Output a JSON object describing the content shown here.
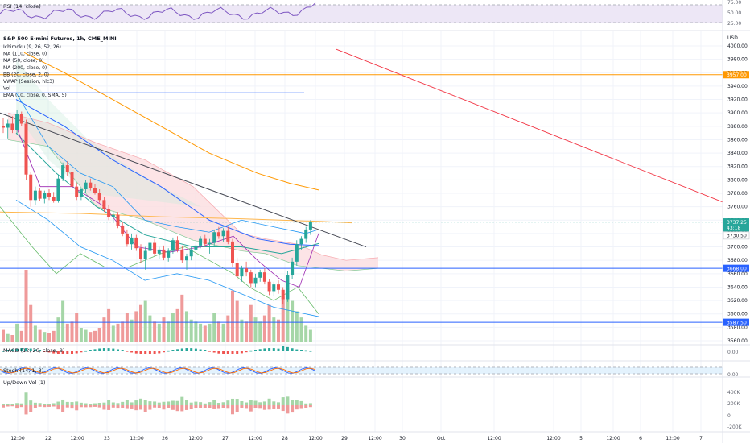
{
  "colors": {
    "up": "#26a69a",
    "down": "#ef5350",
    "vol_up": "#a5d6a7",
    "vol_down": "#ef9a9a",
    "grid": "#f0f3fa",
    "axis_text": "#131722",
    "label_muted": "#5d606b",
    "rsi_line": "#7e57c2",
    "rsi_band": "#ede7f6",
    "ma110": "#2962ff",
    "ma50": "#26a69a",
    "ma200": "#ff9800",
    "bb": "#2196f3",
    "vwap": "#ffb74d",
    "kumo_bear": "#fbdde0",
    "kumo_bull": "#c8ead9",
    "trend_dark": "#434651",
    "trend_red": "#f23645",
    "hline_blue": "#2962ff",
    "hline_orange": "#ff9800",
    "macd_up": "#26a69a",
    "macd_down": "#ef5350",
    "stoch_k": "#2962ff",
    "stoch_d": "#ff6d00"
  },
  "price_panel": {
    "currency": "USD",
    "title": "S&P 500 E-mini Futures, 1h, CME_MINI",
    "indicators": [
      "Ichimoku (9, 26, 52, 26)",
      "MA (110, close, 0)",
      "MA (50, close, 0)",
      "MA (200, close, 0)",
      "BB (20, close, 2, 0)",
      "VWAP (Session, hlc3)",
      "Vol",
      "EMA (10, close, 0, SMA, 5)"
    ],
    "axis_labels": [
      "4000.00",
      "3980.00",
      "3960.00",
      "3940.00",
      "3920.00",
      "3900.00",
      "3880.00",
      "3860.00",
      "3840.00",
      "3820.00",
      "3800.00",
      "3780.00",
      "3760.00",
      "3740.00",
      "3720.00",
      "3700.00",
      "3680.00",
      "3660.00",
      "3640.00",
      "3620.00",
      "3600.00",
      "3580.00",
      "3560.00"
    ],
    "price_tags": [
      {
        "label": "3957.00",
        "color": "#ff9800",
        "text_color": "#ffffff"
      },
      {
        "label": "3737.25",
        "color": "#26a69a",
        "text_color": "#ffffff"
      },
      {
        "label": "43:18",
        "color": "#26a69a",
        "text_color": "#ffffff"
      },
      {
        "label": "3730.50",
        "color": "#ffffff",
        "text_color": "#131722"
      },
      {
        "label": "3668.00",
        "color": "#2962ff",
        "text_color": "#ffffff"
      },
      {
        "label": "3587.50",
        "color": "#2962ff",
        "text_color": "#ffffff"
      }
    ]
  },
  "rsi_panel": {
    "title": "RSI (14, close)",
    "axis_labels": [
      "75.00",
      "50.00",
      "25.00"
    ]
  },
  "macd_panel": {
    "title": "MACD (12, 26, close, 9)",
    "axis_labels": [
      "0.00"
    ]
  },
  "stoch_panel": {
    "title": "Stoch (14, 1, 3)",
    "axis_labels": [
      "0.00"
    ]
  },
  "updown_panel": {
    "title": "Up/Down Vol (1)",
    "axis_labels": [
      "400K",
      "200K",
      "0",
      "-200K",
      "-400K"
    ]
  },
  "time_axis": [
    "12:00",
    "22",
    "12:00",
    "23",
    "12:00",
    "26",
    "12:00",
    "27",
    "12:00",
    "28",
    "12:00",
    "29",
    "12:00",
    "30",
    "Oct",
    "12:00",
    "12:00",
    "5",
    "12:00",
    "6",
    "12:00",
    "7"
  ],
  "chart_data": {
    "type": "candlestick",
    "symbol": "S&P 500 E-mini Futures",
    "interval": "1h",
    "y_axis_range": [
      3560,
      4000
    ],
    "candles": [
      {
        "o": 3880,
        "h": 3892,
        "l": 3870,
        "c": 3878
      },
      {
        "o": 3878,
        "h": 3890,
        "l": 3862,
        "c": 3884
      },
      {
        "o": 3884,
        "h": 3895,
        "l": 3870,
        "c": 3874
      },
      {
        "o": 3874,
        "h": 3905,
        "l": 3868,
        "c": 3898
      },
      {
        "o": 3898,
        "h": 3902,
        "l": 3880,
        "c": 3884
      },
      {
        "o": 3884,
        "h": 3890,
        "l": 3800,
        "c": 3808
      },
      {
        "o": 3808,
        "h": 3812,
        "l": 3760,
        "c": 3770
      },
      {
        "o": 3770,
        "h": 3790,
        "l": 3762,
        "c": 3784
      },
      {
        "o": 3784,
        "h": 3788,
        "l": 3768,
        "c": 3772
      },
      {
        "o": 3772,
        "h": 3784,
        "l": 3765,
        "c": 3780
      },
      {
        "o": 3780,
        "h": 3786,
        "l": 3770,
        "c": 3774
      },
      {
        "o": 3774,
        "h": 3782,
        "l": 3766,
        "c": 3768
      },
      {
        "o": 3768,
        "h": 3808,
        "l": 3766,
        "c": 3802
      },
      {
        "o": 3802,
        "h": 3826,
        "l": 3798,
        "c": 3822
      },
      {
        "o": 3822,
        "h": 3828,
        "l": 3806,
        "c": 3812
      },
      {
        "o": 3812,
        "h": 3818,
        "l": 3786,
        "c": 3790
      },
      {
        "o": 3790,
        "h": 3796,
        "l": 3770,
        "c": 3774
      },
      {
        "o": 3774,
        "h": 3788,
        "l": 3770,
        "c": 3786
      },
      {
        "o": 3786,
        "h": 3800,
        "l": 3780,
        "c": 3796
      },
      {
        "o": 3796,
        "h": 3802,
        "l": 3784,
        "c": 3788
      },
      {
        "o": 3788,
        "h": 3794,
        "l": 3778,
        "c": 3780
      },
      {
        "o": 3780,
        "h": 3786,
        "l": 3766,
        "c": 3770
      },
      {
        "o": 3770,
        "h": 3774,
        "l": 3752,
        "c": 3756
      },
      {
        "o": 3756,
        "h": 3762,
        "l": 3740,
        "c": 3744
      },
      {
        "o": 3744,
        "h": 3752,
        "l": 3736,
        "c": 3748
      },
      {
        "o": 3748,
        "h": 3752,
        "l": 3728,
        "c": 3732
      },
      {
        "o": 3732,
        "h": 3738,
        "l": 3716,
        "c": 3720
      },
      {
        "o": 3720,
        "h": 3726,
        "l": 3700,
        "c": 3704
      },
      {
        "o": 3704,
        "h": 3720,
        "l": 3696,
        "c": 3714
      },
      {
        "o": 3714,
        "h": 3718,
        "l": 3694,
        "c": 3698
      },
      {
        "o": 3698,
        "h": 3704,
        "l": 3676,
        "c": 3682
      },
      {
        "o": 3682,
        "h": 3700,
        "l": 3666,
        "c": 3694
      },
      {
        "o": 3694,
        "h": 3710,
        "l": 3690,
        "c": 3706
      },
      {
        "o": 3706,
        "h": 3712,
        "l": 3686,
        "c": 3690
      },
      {
        "o": 3690,
        "h": 3700,
        "l": 3682,
        "c": 3696
      },
      {
        "o": 3696,
        "h": 3702,
        "l": 3680,
        "c": 3684
      },
      {
        "o": 3684,
        "h": 3698,
        "l": 3678,
        "c": 3694
      },
      {
        "o": 3694,
        "h": 3714,
        "l": 3690,
        "c": 3710
      },
      {
        "o": 3710,
        "h": 3716,
        "l": 3692,
        "c": 3696
      },
      {
        "o": 3696,
        "h": 3702,
        "l": 3676,
        "c": 3680
      },
      {
        "o": 3680,
        "h": 3690,
        "l": 3666,
        "c": 3686
      },
      {
        "o": 3686,
        "h": 3700,
        "l": 3680,
        "c": 3696
      },
      {
        "o": 3696,
        "h": 3708,
        "l": 3690,
        "c": 3702
      },
      {
        "o": 3702,
        "h": 3716,
        "l": 3698,
        "c": 3712
      },
      {
        "o": 3712,
        "h": 3718,
        "l": 3700,
        "c": 3704
      },
      {
        "o": 3704,
        "h": 3712,
        "l": 3690,
        "c": 3706
      },
      {
        "o": 3706,
        "h": 3726,
        "l": 3702,
        "c": 3722
      },
      {
        "o": 3722,
        "h": 3730,
        "l": 3712,
        "c": 3716
      },
      {
        "o": 3716,
        "h": 3728,
        "l": 3708,
        "c": 3724
      },
      {
        "o": 3724,
        "h": 3730,
        "l": 3704,
        "c": 3708
      },
      {
        "o": 3708,
        "h": 3712,
        "l": 3670,
        "c": 3676
      },
      {
        "o": 3676,
        "h": 3684,
        "l": 3650,
        "c": 3656
      },
      {
        "o": 3656,
        "h": 3672,
        "l": 3648,
        "c": 3668
      },
      {
        "o": 3668,
        "h": 3678,
        "l": 3656,
        "c": 3662
      },
      {
        "o": 3662,
        "h": 3666,
        "l": 3640,
        "c": 3646
      },
      {
        "o": 3646,
        "h": 3660,
        "l": 3640,
        "c": 3654
      },
      {
        "o": 3654,
        "h": 3666,
        "l": 3648,
        "c": 3662
      },
      {
        "o": 3662,
        "h": 3668,
        "l": 3644,
        "c": 3648
      },
      {
        "o": 3648,
        "h": 3652,
        "l": 3628,
        "c": 3634
      },
      {
        "o": 3634,
        "h": 3648,
        "l": 3626,
        "c": 3644
      },
      {
        "o": 3644,
        "h": 3650,
        "l": 3630,
        "c": 3636
      },
      {
        "o": 3636,
        "h": 3640,
        "l": 3614,
        "c": 3622
      },
      {
        "o": 3622,
        "h": 3664,
        "l": 3618,
        "c": 3658
      },
      {
        "o": 3658,
        "h": 3684,
        "l": 3652,
        "c": 3678
      },
      {
        "o": 3678,
        "h": 3710,
        "l": 3672,
        "c": 3704
      },
      {
        "o": 3704,
        "h": 3716,
        "l": 3696,
        "c": 3712
      },
      {
        "o": 3712,
        "h": 3730,
        "l": 3706,
        "c": 3726
      },
      {
        "o": 3726,
        "h": 3740,
        "l": 3718,
        "c": 3737.25
      }
    ],
    "volume": [
      60,
      40,
      35,
      90,
      55,
      350,
      180,
      80,
      60,
      50,
      45,
      55,
      120,
      200,
      90,
      100,
      140,
      70,
      60,
      50,
      55,
      70,
      120,
      160,
      80,
      90,
      100,
      140,
      110,
      150,
      180,
      200,
      130,
      100,
      90,
      120,
      100,
      140,
      160,
      230,
      150,
      110,
      100,
      90,
      80,
      90,
      140,
      100,
      90,
      130,
      250,
      200,
      110,
      100,
      180,
      120,
      100,
      130,
      180,
      120,
      110,
      220,
      260,
      200,
      150,
      120,
      80,
      60
    ]
  }
}
